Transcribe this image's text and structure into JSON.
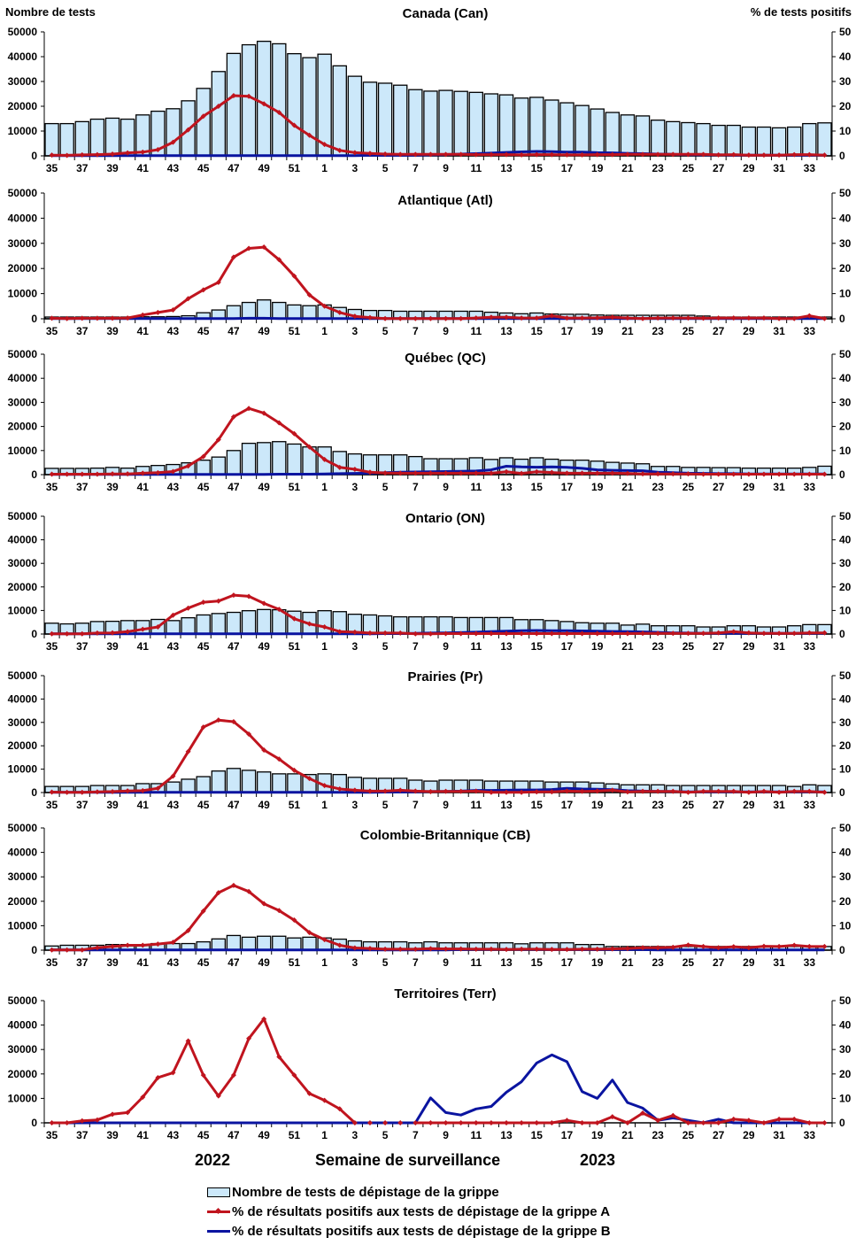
{
  "chart_data": {
    "type": "bar",
    "title": "",
    "left_axis_label": "Nombre de tests",
    "right_axis_label": "% de tests positifs",
    "xlabel": "Semaine de surveillance",
    "year_labels": [
      "2022",
      "2023"
    ],
    "left_ylim": [
      0,
      50000
    ],
    "right_ylim": [
      0,
      50
    ],
    "left_yticks": [
      "0",
      "10000",
      "20000",
      "30000",
      "40000",
      "50000"
    ],
    "right_yticks": [
      "0",
      "10",
      "20",
      "30",
      "40",
      "50"
    ],
    "categories": [
      "35",
      "36",
      "37",
      "38",
      "39",
      "40",
      "41",
      "42",
      "43",
      "44",
      "45",
      "46",
      "47",
      "48",
      "49",
      "50",
      "51",
      "52",
      "1",
      "2",
      "3",
      "4",
      "5",
      "6",
      "7",
      "8",
      "9",
      "10",
      "11",
      "12",
      "13",
      "14",
      "15",
      "16",
      "17",
      "18",
      "19",
      "20",
      "21",
      "22",
      "23",
      "24",
      "25",
      "26",
      "27",
      "28",
      "29",
      "30",
      "31",
      "32",
      "33",
      "34"
    ],
    "xtick_labels_shown": [
      "35",
      "37",
      "39",
      "41",
      "43",
      "45",
      "47",
      "49",
      "51",
      "1",
      "3",
      "5",
      "7",
      "9",
      "11",
      "13",
      "15",
      "17",
      "19",
      "21",
      "23",
      "25",
      "27",
      "29",
      "31",
      "33"
    ],
    "colors": {
      "bars": "#cce8fa",
      "bar_border": "#000000",
      "flu_a": "#c0141e",
      "flu_b": "#0a14a0"
    },
    "legend": [
      {
        "label": "Nombre de tests de dépistage de la grippe",
        "kind": "bar"
      },
      {
        "label": "% de résultats positifs aux tests de dépistage de la grippe A",
        "kind": "line-marker"
      },
      {
        "label": "% de résultats positifs aux tests de dépistage de la grippe B",
        "kind": "line"
      }
    ],
    "panels": [
      {
        "name": "Canada (Can)",
        "tests": [
          13000,
          13000,
          13800,
          14800,
          15200,
          14800,
          16500,
          18000,
          19000,
          22200,
          27200,
          34000,
          41300,
          44800,
          46200,
          45200,
          41200,
          39600,
          41000,
          36300,
          32100,
          29700,
          29300,
          28500,
          26700,
          26100,
          26400,
          26000,
          25600,
          25000,
          24600,
          23300,
          23600,
          22500,
          21400,
          20300,
          18900,
          17500,
          16500,
          16100,
          14400,
          13800,
          13400,
          13000,
          12300,
          12300,
          11600,
          11600,
          11300,
          11600,
          13000,
          13300
        ],
        "flu_a": [
          0.3,
          0.2,
          0.4,
          0.5,
          0.7,
          1.2,
          1.5,
          2.5,
          5.5,
          10.5,
          16,
          20,
          24.3,
          24,
          21,
          17.5,
          12.3,
          8.3,
          4.6,
          2.2,
          1.3,
          1,
          0.7,
          0.6,
          0.6,
          0.6,
          0.6,
          0.6,
          0.5,
          0.5,
          0.5,
          0.4,
          0.5,
          0.5,
          0.4,
          0.4,
          0.5,
          0.5,
          0.6,
          0.6,
          0.6,
          0.6,
          0.6,
          0.6,
          0.4,
          0.5,
          0.3,
          0.3,
          0.3,
          0.5,
          0.5,
          0.3
        ],
        "flu_b": [
          0.1,
          0.1,
          0.1,
          0.1,
          0.1,
          0.1,
          0.1,
          0.1,
          0.1,
          0.1,
          0.1,
          0.1,
          0.1,
          0.1,
          0.1,
          0.1,
          0.1,
          0.1,
          0.1,
          0.1,
          0.1,
          0.2,
          0.2,
          0.2,
          0.3,
          0.4,
          0.5,
          0.7,
          0.9,
          1.1,
          1.4,
          1.6,
          1.8,
          1.7,
          1.5,
          1.5,
          1.3,
          1.2,
          1,
          0.9,
          0.7,
          0.6,
          0.5,
          0.4,
          0.4,
          0.3,
          0.3,
          0.3,
          0.3,
          0.3,
          0.3,
          0.3
        ]
      },
      {
        "name": "Atlantique (Atl)",
        "tests": [
          700,
          700,
          700,
          700,
          700,
          700,
          800,
          800,
          900,
          1200,
          2400,
          3500,
          5200,
          6500,
          7500,
          6500,
          5500,
          5200,
          5500,
          4500,
          3700,
          3300,
          3300,
          3000,
          3000,
          3000,
          3000,
          3000,
          3000,
          2600,
          2300,
          2000,
          2300,
          1900,
          1800,
          1800,
          1500,
          1400,
          1400,
          1400,
          1400,
          1400,
          1400,
          1100,
          700,
          700,
          700,
          700,
          700,
          700,
          700,
          700
        ],
        "flu_a": [
          0.2,
          0.1,
          0.2,
          0.2,
          0.2,
          0.3,
          1.5,
          2.5,
          3.5,
          8,
          11.5,
          14.5,
          24.5,
          28,
          28.5,
          23.5,
          17,
          9.5,
          5,
          2.5,
          1,
          0.5,
          0.1,
          0.1,
          0.1,
          0.1,
          0.1,
          0.1,
          0.3,
          0.6,
          0.6,
          0.3,
          0.3,
          1.2,
          0.3,
          0.3,
          0.4,
          0.6,
          0.3,
          0.1,
          0.3,
          0.3,
          0.3,
          0.2,
          0.3,
          0.3,
          0.3,
          0.3,
          0.1,
          0.1,
          1.2,
          0.1
        ],
        "flu_b": [
          0.1,
          0.1,
          0.1,
          0.1,
          0.1,
          0.1,
          0.1,
          0.1,
          0.1,
          0.1,
          0.1,
          0.1,
          0.1,
          0.2,
          0.2,
          0.1,
          0.1,
          0.1,
          0.1,
          0.1,
          0.1,
          0.1,
          0.1,
          0.1,
          0.1,
          0.1,
          0.1,
          0.1,
          0.1,
          0.1,
          0.1,
          0.1,
          0.1,
          0.1,
          0.1,
          0.1,
          0.1,
          0.1,
          0.1,
          0.1,
          0.1,
          0.1,
          0.1,
          0.1,
          0.1,
          0.1,
          0.1,
          0.1,
          0.1,
          0.1,
          0.1,
          0.1
        ]
      },
      {
        "name": "Québec (QC)",
        "tests": [
          2600,
          2600,
          2600,
          2700,
          3000,
          2700,
          3400,
          3800,
          4200,
          4900,
          6000,
          7300,
          10000,
          13000,
          13300,
          13700,
          12700,
          11500,
          11500,
          9600,
          8600,
          8200,
          8200,
          8200,
          7500,
          6600,
          6600,
          6600,
          7000,
          6300,
          7000,
          6400,
          7000,
          6400,
          6000,
          6000,
          5600,
          5100,
          4800,
          4500,
          3400,
          3400,
          3000,
          3000,
          2900,
          2900,
          2700,
          2700,
          2700,
          2700,
          3000,
          3500
        ],
        "flu_a": [
          0.2,
          0.2,
          0.2,
          0.2,
          0.3,
          0.3,
          0.6,
          0.8,
          1.3,
          3.6,
          7.5,
          14.5,
          24,
          27.5,
          25.5,
          21.5,
          17,
          11.5,
          6.3,
          3,
          2.2,
          1,
          0.7,
          0.6,
          0.6,
          0.6,
          0.6,
          0.6,
          0.6,
          0.6,
          1.2,
          0.5,
          1.2,
          0.9,
          0.6,
          0.6,
          0.6,
          0.6,
          0.5,
          0.3,
          0.3,
          0.3,
          0.3,
          0.2,
          0.2,
          0.2,
          0.2,
          0.2,
          0.2,
          0.2,
          0.2,
          0.2
        ],
        "flu_b": [
          0.1,
          0.1,
          0.1,
          0.1,
          0.1,
          0.1,
          0.1,
          0.1,
          0.1,
          0.1,
          0.1,
          0.1,
          0.1,
          0.1,
          0.1,
          0.2,
          0.2,
          0.2,
          0.3,
          0.4,
          0.5,
          0.6,
          0.8,
          1,
          1.1,
          1.2,
          1.3,
          1.4,
          1.5,
          2,
          3.5,
          3.2,
          3.1,
          3.2,
          3,
          2.6,
          2,
          1.8,
          1.7,
          1.6,
          1,
          0.8,
          0.6,
          0.5,
          0.4,
          0.4,
          0.3,
          0.3,
          0.3,
          0.3,
          0.3,
          0.3
        ]
      },
      {
        "name": "Ontario (ON)",
        "tests": [
          4600,
          4300,
          4600,
          5300,
          5400,
          5700,
          5700,
          6200,
          5700,
          6900,
          8100,
          8700,
          9200,
          9900,
          10400,
          10300,
          9700,
          9200,
          9900,
          9500,
          8400,
          8100,
          7700,
          7300,
          7300,
          7300,
          7300,
          7000,
          7000,
          7000,
          7000,
          6100,
          6100,
          5700,
          5300,
          4800,
          4600,
          4600,
          3800,
          4200,
          3500,
          3500,
          3500,
          3000,
          3000,
          3500,
          3500,
          3000,
          3000,
          3500,
          4000,
          4000
        ],
        "flu_a": [
          0.1,
          0.1,
          0.1,
          0.4,
          0.5,
          1,
          2,
          3,
          8,
          11,
          13.5,
          14,
          16.5,
          16,
          13,
          10.5,
          6.5,
          4.3,
          3,
          1,
          0.8,
          0.4,
          0.4,
          0.4,
          0.1,
          0.1,
          0.2,
          0.2,
          0.2,
          0.2,
          0.2,
          0.2,
          0.2,
          0.2,
          0.2,
          0.2,
          0.2,
          0.2,
          0.2,
          0.3,
          0.3,
          0.3,
          0.3,
          0.3,
          0.5,
          1,
          0.5,
          0.3,
          0.3,
          0.3,
          0.5,
          0.5
        ],
        "flu_b": [
          0.1,
          0.1,
          0.1,
          0.1,
          0.1,
          0.1,
          0.1,
          0.1,
          0.1,
          0.1,
          0.1,
          0.1,
          0.1,
          0.1,
          0.1,
          0.1,
          0.1,
          0.1,
          0.1,
          0.1,
          0.1,
          0.1,
          0.2,
          0.2,
          0.3,
          0.4,
          0.5,
          0.6,
          0.8,
          1,
          1.2,
          1.4,
          1.5,
          1.4,
          1.4,
          1.3,
          1.2,
          1.1,
          1,
          0.9,
          0.7,
          0.5,
          0.4,
          0.3,
          0.3,
          0.3,
          0.3,
          0.3,
          0.3,
          0.3,
          0.3,
          0.3
        ]
      },
      {
        "name": "Prairies (Pr)",
        "tests": [
          2600,
          2600,
          2600,
          3000,
          3000,
          3000,
          3800,
          3800,
          4500,
          5700,
          6800,
          9200,
          10300,
          9500,
          8800,
          8000,
          8000,
          7700,
          8000,
          7700,
          6500,
          6100,
          6100,
          6100,
          5300,
          4900,
          5300,
          5300,
          5300,
          4900,
          4900,
          4900,
          4900,
          4500,
          4500,
          4500,
          4100,
          3700,
          3300,
          3300,
          3300,
          3000,
          3000,
          3000,
          3000,
          3000,
          3000,
          3000,
          3000,
          2600,
          3300,
          3000
        ],
        "flu_a": [
          0.2,
          0.1,
          0.1,
          0.3,
          0.4,
          0.7,
          0.8,
          1.8,
          7,
          17.5,
          28,
          31,
          30.3,
          25,
          18.2,
          14.3,
          9.5,
          6,
          3,
          1.5,
          1,
          0.6,
          0.6,
          1,
          0.6,
          0.4,
          0.5,
          0.5,
          0.6,
          0.1,
          0.1,
          0.1,
          0.3,
          0.3,
          0.6,
          0.5,
          0.6,
          1,
          0.3,
          0.5,
          0.5,
          0.5,
          0.1,
          0.5,
          0.5,
          0.5,
          0.1,
          0.5,
          0.1,
          0.5,
          0.5,
          0.1
        ],
        "flu_b": [
          0.1,
          0.1,
          0.1,
          0.1,
          0.1,
          0.1,
          0.1,
          0.1,
          0.1,
          0.1,
          0.1,
          0.1,
          0.1,
          0.1,
          0.1,
          0.1,
          0.1,
          0.1,
          0.1,
          0.1,
          0.1,
          0.1,
          0.2,
          0.2,
          0.3,
          0.4,
          0.5,
          0.6,
          0.9,
          0.9,
          1,
          1.1,
          1.1,
          1.3,
          1.8,
          1.5,
          1.4,
          1.2,
          0.8,
          0.6,
          0.5,
          0.4,
          0.3,
          0.3,
          0.3,
          0.3,
          0.3,
          0.3,
          0.3,
          0.3,
          0.3,
          0.3
        ]
      },
      {
        "name": "Colombie-Britannique (CB)",
        "tests": [
          1700,
          2000,
          2000,
          2000,
          2300,
          2300,
          2300,
          2700,
          2700,
          2700,
          3400,
          4600,
          6000,
          5300,
          5700,
          5700,
          5000,
          5300,
          5000,
          4500,
          3800,
          3400,
          3400,
          3400,
          3000,
          3400,
          3000,
          3000,
          3000,
          3000,
          3000,
          2600,
          3000,
          3000,
          3000,
          2300,
          2300,
          1500,
          1500,
          1500,
          1500,
          1500,
          1500,
          1500,
          1500,
          1500,
          1500,
          1500,
          1500,
          1500,
          1500,
          1500
        ],
        "flu_a": [
          0.1,
          0.1,
          0.1,
          1,
          1.5,
          2,
          2,
          2.5,
          3.2,
          8,
          16,
          23.5,
          26.5,
          24,
          19,
          16.2,
          12.3,
          7.2,
          4.3,
          2,
          0.9,
          0.7,
          0.4,
          0.4,
          0.4,
          0.6,
          0.5,
          0.5,
          0.4,
          0.4,
          0.3,
          0.4,
          0.4,
          0.3,
          0.3,
          0.4,
          0.4,
          0.5,
          0.7,
          1,
          1,
          1.2,
          2.1,
          1.5,
          1,
          1.4,
          1,
          1.6,
          1.5,
          2,
          1.5,
          1.5
        ],
        "flu_b": [
          0.1,
          0.1,
          0.1,
          0.1,
          0.1,
          0.1,
          0.1,
          0.1,
          0.1,
          0.1,
          0.1,
          0.1,
          0.1,
          0.1,
          0.1,
          0.1,
          0.1,
          0.1,
          0.1,
          0.1,
          0.1,
          0.1,
          0.1,
          0.1,
          0.1,
          0.1,
          0.1,
          0.2,
          0.3,
          0.3,
          0.3,
          0.3,
          0.3,
          0.2,
          0.2,
          0.2,
          0.2,
          0.2,
          0.2,
          0.2,
          0.1,
          0.1,
          0.1,
          0.1,
          0.1,
          0.1,
          0.1,
          0.1,
          0.1,
          0.1,
          0.1,
          0.1
        ]
      },
      {
        "name": "Territoires (Terr)",
        "tests": null,
        "flu_a": [
          0,
          0,
          0.8,
          1.2,
          3.5,
          4.2,
          10.5,
          18.5,
          20.5,
          33.5,
          19.5,
          11,
          19.5,
          34.5,
          42.5,
          27,
          19.5,
          12,
          9.2,
          5.7,
          0,
          0,
          0,
          0,
          0,
          0,
          0,
          0,
          0,
          0,
          0,
          0,
          0,
          0,
          1,
          0,
          0,
          2.5,
          0,
          4,
          1,
          3,
          0,
          0,
          0,
          1.5,
          1,
          0,
          1.5,
          1.5,
          0,
          0
        ],
        "flu_a_gaps_after_index": [
          20
        ],
        "flu_b": [
          0,
          0,
          0,
          0,
          0,
          0,
          0,
          0,
          0,
          0,
          0,
          0,
          0,
          0,
          0,
          0,
          0,
          0,
          0,
          0,
          0,
          0,
          0,
          0,
          0,
          10.2,
          4.2,
          3.2,
          5.7,
          6.7,
          12.5,
          16.8,
          24.5,
          27.8,
          25,
          12.8,
          10,
          17.5,
          8.3,
          6,
          1,
          2,
          1,
          0,
          1.5,
          0,
          0,
          0,
          0,
          0,
          0,
          0
        ]
      }
    ]
  }
}
